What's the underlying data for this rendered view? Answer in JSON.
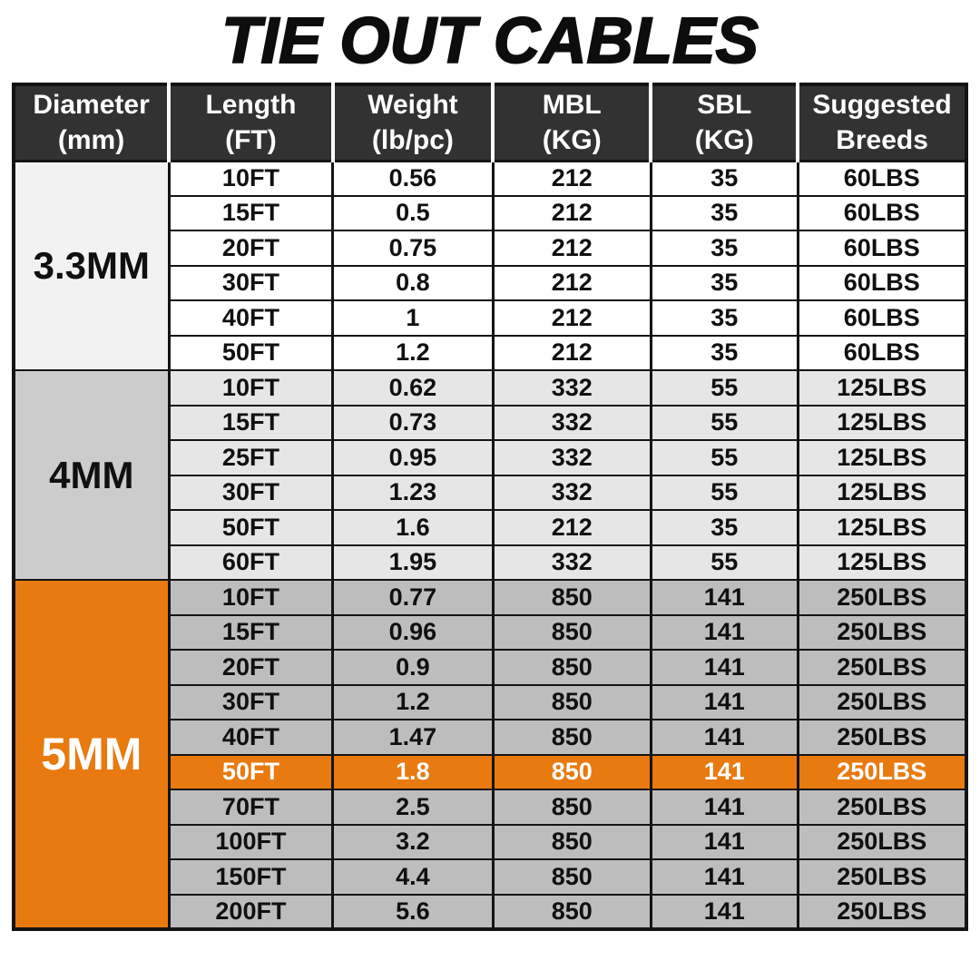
{
  "title": "TIE OUT CABLES",
  "colors": {
    "accent_orange": "#e87a10",
    "header_bg": "#323232",
    "header_text": "#ffffff",
    "border": "#141414",
    "section_3_3mm_label_bg": "#f2f2f2",
    "section_3_3mm_row_bg": "#ffffff",
    "section_4mm_label_bg": "#cccccc",
    "section_4mm_row_bg": "#e6e6e6",
    "section_5mm_row_bg": "#bdbdbd",
    "highlight_row_bg": "#e87a10",
    "highlight_row_text": "#ffffff"
  },
  "chart_data": {
    "type": "table",
    "title": "TIE OUT CABLES",
    "columns": [
      {
        "line1": "Diameter",
        "line2": "(mm)"
      },
      {
        "line1": "Length",
        "line2": "(FT)"
      },
      {
        "line1": "Weight",
        "line2": "(lb/pc)"
      },
      {
        "line1": "MBL",
        "line2": "(KG)"
      },
      {
        "line1": "SBL",
        "line2": "(KG)"
      },
      {
        "line1": "Suggested",
        "line2": "Breeds"
      }
    ],
    "sections": [
      {
        "diameter": "3.3MM",
        "rows": [
          {
            "length": "10FT",
            "weight": "0.56",
            "mbl": "212",
            "sbl": "35",
            "breeds": "60LBS"
          },
          {
            "length": "15FT",
            "weight": "0.5",
            "mbl": "212",
            "sbl": "35",
            "breeds": "60LBS"
          },
          {
            "length": "20FT",
            "weight": "0.75",
            "mbl": "212",
            "sbl": "35",
            "breeds": "60LBS"
          },
          {
            "length": "30FT",
            "weight": "0.8",
            "mbl": "212",
            "sbl": "35",
            "breeds": "60LBS"
          },
          {
            "length": "40FT",
            "weight": "1",
            "mbl": "212",
            "sbl": "35",
            "breeds": "60LBS"
          },
          {
            "length": "50FT",
            "weight": "1.2",
            "mbl": "212",
            "sbl": "35",
            "breeds": "60LBS"
          }
        ]
      },
      {
        "diameter": "4MM",
        "rows": [
          {
            "length": "10FT",
            "weight": "0.62",
            "mbl": "332",
            "sbl": "55",
            "breeds": "125LBS"
          },
          {
            "length": "15FT",
            "weight": "0.73",
            "mbl": "332",
            "sbl": "55",
            "breeds": "125LBS"
          },
          {
            "length": "25FT",
            "weight": "0.95",
            "mbl": "332",
            "sbl": "55",
            "breeds": "125LBS"
          },
          {
            "length": "30FT",
            "weight": "1.23",
            "mbl": "332",
            "sbl": "55",
            "breeds": "125LBS"
          },
          {
            "length": "50FT",
            "weight": "1.6",
            "mbl": "212",
            "sbl": "35",
            "breeds": "125LBS"
          },
          {
            "length": "60FT",
            "weight": "1.95",
            "mbl": "332",
            "sbl": "55",
            "breeds": "125LBS"
          }
        ]
      },
      {
        "diameter": "5MM",
        "rows": [
          {
            "length": "10FT",
            "weight": "0.77",
            "mbl": "850",
            "sbl": "141",
            "breeds": "250LBS"
          },
          {
            "length": "15FT",
            "weight": "0.96",
            "mbl": "850",
            "sbl": "141",
            "breeds": "250LBS"
          },
          {
            "length": "20FT",
            "weight": "0.9",
            "mbl": "850",
            "sbl": "141",
            "breeds": "250LBS"
          },
          {
            "length": "30FT",
            "weight": "1.2",
            "mbl": "850",
            "sbl": "141",
            "breeds": "250LBS"
          },
          {
            "length": "40FT",
            "weight": "1.47",
            "mbl": "850",
            "sbl": "141",
            "breeds": "250LBS"
          },
          {
            "length": "50FT",
            "weight": "1.8",
            "mbl": "850",
            "sbl": "141",
            "breeds": "250LBS",
            "highlight": true
          },
          {
            "length": "70FT",
            "weight": "2.5",
            "mbl": "850",
            "sbl": "141",
            "breeds": "250LBS"
          },
          {
            "length": "100FT",
            "weight": "3.2",
            "mbl": "850",
            "sbl": "141",
            "breeds": "250LBS"
          },
          {
            "length": "150FT",
            "weight": "4.4",
            "mbl": "850",
            "sbl": "141",
            "breeds": "250LBS"
          },
          {
            "length": "200FT",
            "weight": "5.6",
            "mbl": "850",
            "sbl": "141",
            "breeds": "250LBS"
          }
        ]
      }
    ]
  }
}
